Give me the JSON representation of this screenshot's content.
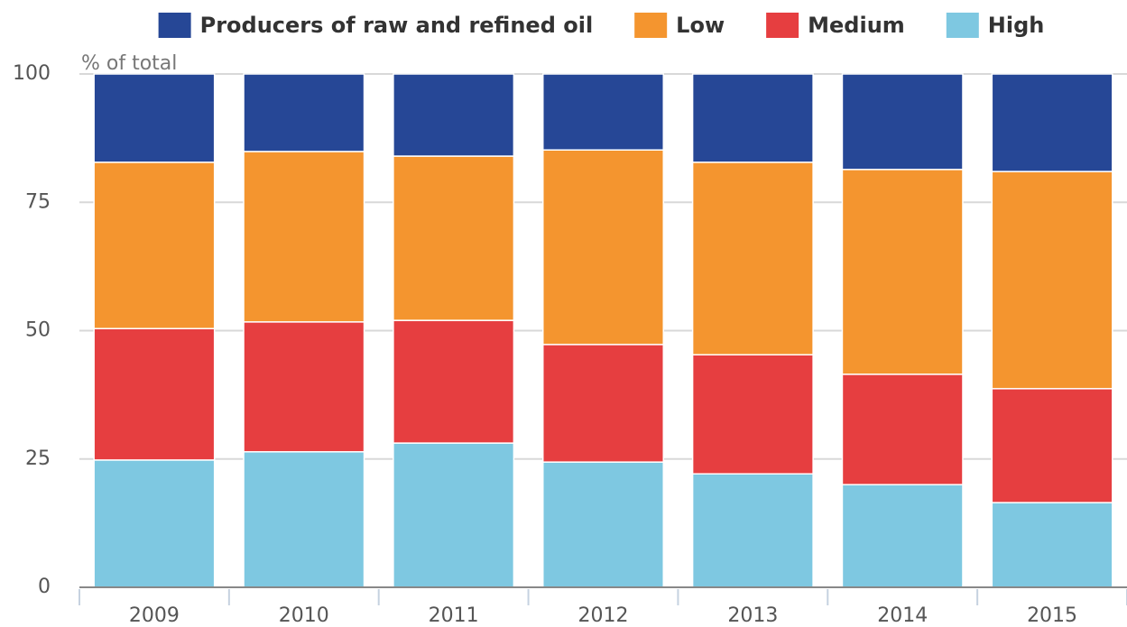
{
  "chart_data": {
    "type": "stacked_bar",
    "y_label": "% of total",
    "categories": [
      "2009",
      "2010",
      "2011",
      "2012",
      "2013",
      "2014",
      "2015"
    ],
    "series": [
      {
        "name": "Producers of raw and refined oil",
        "color": "#264796",
        "values": [
          17.2,
          15.1,
          16.0,
          14.8,
          17.2,
          18.6,
          19.0
        ]
      },
      {
        "name": "Low",
        "color": "#f4952f",
        "values": [
          32.4,
          33.2,
          32.0,
          37.9,
          37.5,
          39.9,
          42.3
        ]
      },
      {
        "name": "Medium",
        "color": "#e63e40",
        "values": [
          25.6,
          25.3,
          23.9,
          22.9,
          23.2,
          21.5,
          22.2
        ]
      },
      {
        "name": "High",
        "color": "#7ec8e1",
        "values": [
          24.8,
          26.4,
          28.1,
          24.4,
          22.1,
          20.0,
          16.5
        ]
      }
    ],
    "ylim": [
      0,
      100
    ],
    "yticks": [
      0,
      25,
      50,
      75,
      100
    ],
    "grid": true,
    "legend": "top"
  }
}
